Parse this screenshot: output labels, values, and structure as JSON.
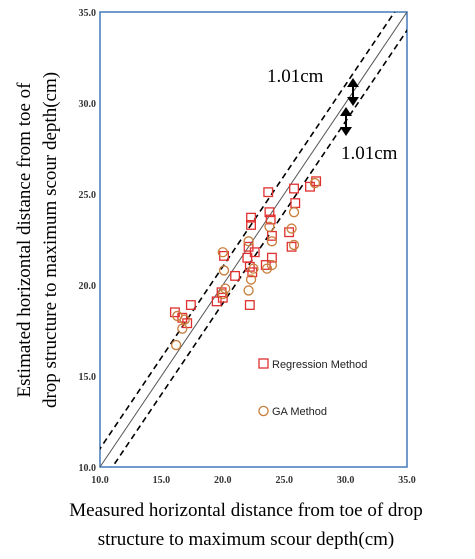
{
  "chart_data": {
    "type": "scatter",
    "xlabel_lines": [
      "Measured horizontal distance from toe of drop",
      "structure to maximum scour depth(cm)"
    ],
    "ylabel_lines": [
      "Estimated horizontal distance from toe of",
      "drop structure to maximum scour depth(cm)"
    ],
    "xlim": [
      10.0,
      35.0
    ],
    "ylim": [
      10.0,
      35.0
    ],
    "x_ticks": [
      "10.0",
      "15.0",
      "20.0",
      "25.0",
      "30.0",
      "35.0"
    ],
    "y_ticks": [
      "10.0",
      "15.0",
      "20.0",
      "25.0",
      "30.0",
      "35.0"
    ],
    "grid": false,
    "legend_position": "right",
    "colors": {
      "frame": "#4f81bd",
      "regression": "#e03030",
      "ga": "#c87e3c",
      "lines": "#000000"
    },
    "reference_lines": [
      {
        "type": "line-of-equality",
        "style": "solid",
        "offset": 0
      },
      {
        "type": "upper-bound",
        "style": "dashed",
        "offset": 1.01
      },
      {
        "type": "lower-bound",
        "style": "dashed",
        "offset": -1.01
      }
    ],
    "annotations": {
      "upper": "1.01cm",
      "lower": "1.01cm"
    },
    "series": [
      {
        "name": "Regression Method",
        "marker": "square",
        "points": [
          [
            16.1,
            18.5
          ],
          [
            16.7,
            18.2
          ],
          [
            17.1,
            17.9
          ],
          [
            17.4,
            18.9
          ],
          [
            19.5,
            19.1
          ],
          [
            19.9,
            19.6
          ],
          [
            20.0,
            19.3
          ],
          [
            20.1,
            21.6
          ],
          [
            21.0,
            20.5
          ],
          [
            22.0,
            21.5
          ],
          [
            22.1,
            22.1
          ],
          [
            22.2,
            21.0
          ],
          [
            22.2,
            18.9
          ],
          [
            22.3,
            23.7
          ],
          [
            22.3,
            23.3
          ],
          [
            22.4,
            20.7
          ],
          [
            22.6,
            21.8
          ],
          [
            23.5,
            21.1
          ],
          [
            23.7,
            25.1
          ],
          [
            23.8,
            24.0
          ],
          [
            23.9,
            23.6
          ],
          [
            24.0,
            22.7
          ],
          [
            24.0,
            21.5
          ],
          [
            25.4,
            22.9
          ],
          [
            25.6,
            22.1
          ],
          [
            25.8,
            25.3
          ],
          [
            25.9,
            24.5
          ],
          [
            27.1,
            25.4
          ],
          [
            27.6,
            25.7
          ]
        ]
      },
      {
        "name": "GA Method",
        "marker": "circle",
        "points": [
          [
            16.2,
            16.7
          ],
          [
            16.3,
            18.3
          ],
          [
            16.7,
            17.6
          ],
          [
            16.9,
            18.1
          ],
          [
            20.0,
            21.8
          ],
          [
            20.0,
            19.5
          ],
          [
            20.1,
            20.8
          ],
          [
            20.2,
            19.8
          ],
          [
            22.1,
            19.7
          ],
          [
            22.1,
            22.4
          ],
          [
            22.3,
            20.3
          ],
          [
            22.5,
            20.9
          ],
          [
            23.6,
            20.9
          ],
          [
            23.8,
            23.2
          ],
          [
            24.0,
            22.4
          ],
          [
            24.0,
            21.1
          ],
          [
            25.6,
            23.1
          ],
          [
            25.8,
            22.2
          ],
          [
            25.8,
            24.0
          ],
          [
            27.5,
            25.6
          ]
        ]
      }
    ]
  }
}
